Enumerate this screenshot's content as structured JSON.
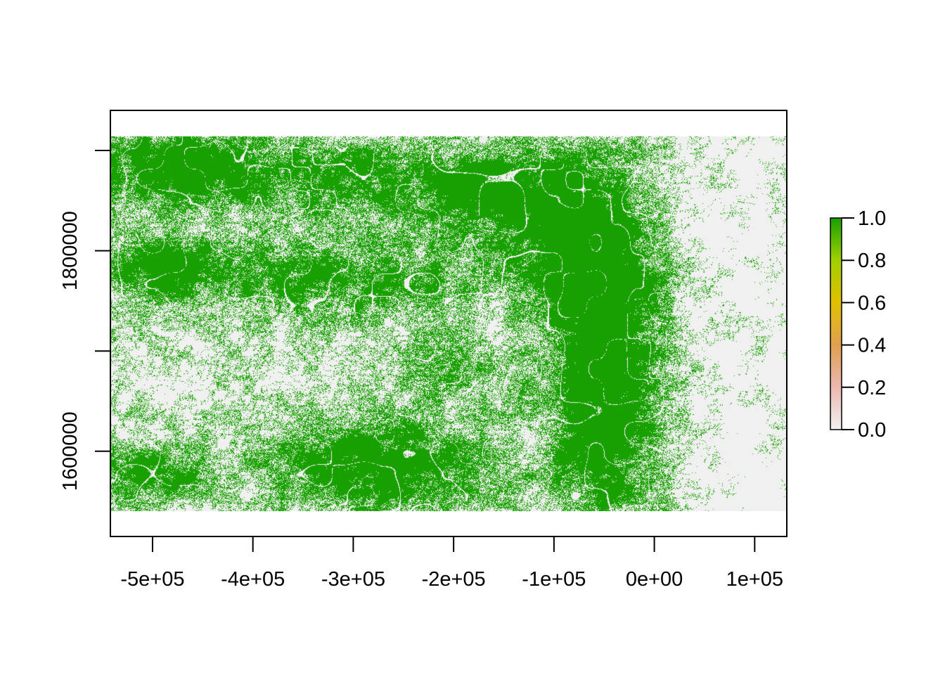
{
  "chart_data": {
    "type": "heatmap",
    "title": "",
    "xlabel": "",
    "ylabel": "",
    "x_axis": {
      "ticks": [
        -500000,
        -400000,
        -300000,
        -200000,
        -100000,
        0,
        100000
      ],
      "tick_labels": [
        "-5e+05",
        "-4e+05",
        "-3e+05",
        "-2e+05",
        "-1e+05",
        "0e+00",
        "1e+05"
      ],
      "range": [
        -542000,
        132000
      ]
    },
    "y_axis": {
      "ticks": [
        1600000,
        1700000,
        1800000,
        1900000
      ],
      "tick_labels": [
        "1600000",
        "",
        "1800000",
        ""
      ],
      "range": [
        1515000,
        1940000
      ]
    },
    "raster_extent": {
      "xmin": -542000,
      "xmax": 132000,
      "ymin": 1540000,
      "ymax": 1914000
    },
    "value_range": [
      0,
      1
    ],
    "background_value_color": "#f0f0f0",
    "presence_color": "#18a000",
    "legend": {
      "position": "right",
      "ticks": [
        0.0,
        0.2,
        0.4,
        0.6,
        0.8,
        1.0
      ],
      "tick_labels": [
        "0.0",
        "0.2",
        "0.4",
        "0.6",
        "0.8",
        "1.0"
      ],
      "color_stops": [
        "#f2f2f2",
        "#ebb8b0",
        "#e0a050",
        "#e0c000",
        "#a0d000",
        "#18a000"
      ]
    }
  }
}
